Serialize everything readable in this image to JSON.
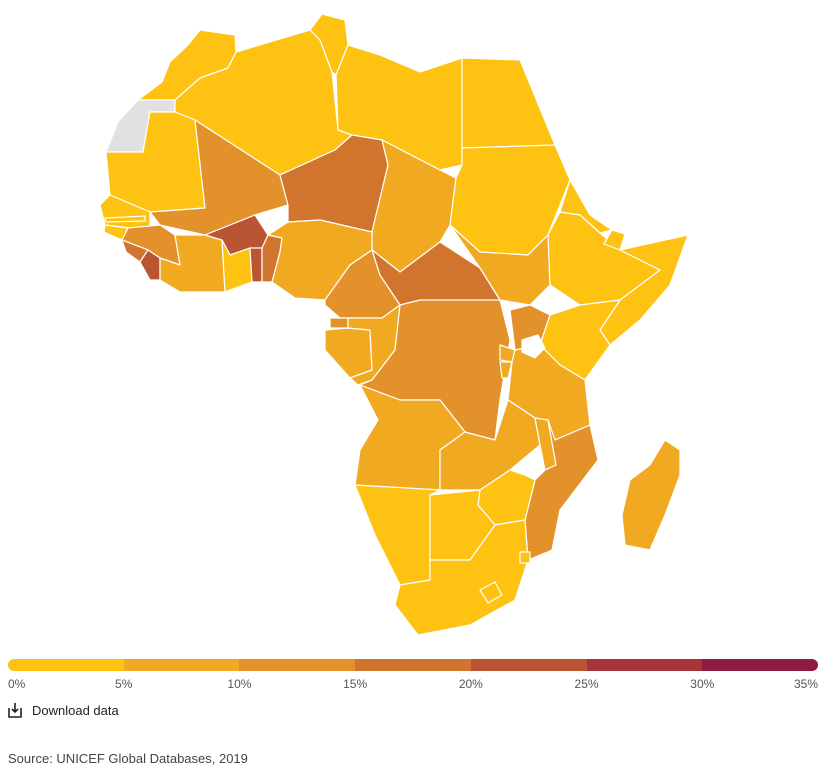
{
  "map": {
    "legend": {
      "colors": [
        "#FEC212",
        "#F0A920",
        "#E3912A",
        "#D0742E",
        "#BA5534",
        "#A53539",
        "#8F1A42"
      ],
      "labels": [
        "0%",
        "5%",
        "10%",
        "15%",
        "20%",
        "25%",
        "30%",
        "35%"
      ]
    },
    "no_data_color": "#E1E1E1",
    "regions": [
      {
        "name": "Morocco",
        "value": 1
      },
      {
        "name": "Western Sahara",
        "value": null
      },
      {
        "name": "Algeria",
        "value": 1
      },
      {
        "name": "Tunisia",
        "value": 1
      },
      {
        "name": "Libya",
        "value": 1
      },
      {
        "name": "Egypt",
        "value": 2
      },
      {
        "name": "Mauritania",
        "value": 2
      },
      {
        "name": "Mali",
        "value": 11
      },
      {
        "name": "Niger",
        "value": 16
      },
      {
        "name": "Chad",
        "value": 8
      },
      {
        "name": "Sudan",
        "value": 4
      },
      {
        "name": "Senegal",
        "value": 4
      },
      {
        "name": "Gambia",
        "value": 4
      },
      {
        "name": "Guinea-Bissau",
        "value": 4
      },
      {
        "name": "Guinea",
        "value": 14
      },
      {
        "name": "Sierra Leone",
        "value": 15
      },
      {
        "name": "Liberia",
        "value": 21
      },
      {
        "name": "Cote d'Ivoire",
        "value": 7
      },
      {
        "name": "Burkina Faso",
        "value": 20
      },
      {
        "name": "Ghana",
        "value": 4
      },
      {
        "name": "Togo",
        "value": 21
      },
      {
        "name": "Benin",
        "value": 16
      },
      {
        "name": "Nigeria",
        "value": 7
      },
      {
        "name": "Cameroon",
        "value": 10
      },
      {
        "name": "Central African Republic",
        "value": 16
      },
      {
        "name": "South Sudan",
        "value": 7
      },
      {
        "name": "Ethiopia",
        "value": 3
      },
      {
        "name": "Eritrea",
        "value": 3
      },
      {
        "name": "Djibouti",
        "value": 3
      },
      {
        "name": "Somalia",
        "value": 2
      },
      {
        "name": "Equatorial Guinea",
        "value": 13
      },
      {
        "name": "Gabon",
        "value": 7
      },
      {
        "name": "Congo",
        "value": 8
      },
      {
        "name": "DR Congo",
        "value": 12
      },
      {
        "name": "Uganda",
        "value": 11
      },
      {
        "name": "Kenya",
        "value": 2
      },
      {
        "name": "Rwanda",
        "value": 7
      },
      {
        "name": "Burundi",
        "value": 8
      },
      {
        "name": "Tanzania",
        "value": 7
      },
      {
        "name": "Angola",
        "value": 7
      },
      {
        "name": "Zambia",
        "value": 7
      },
      {
        "name": "Malawi",
        "value": 8
      },
      {
        "name": "Mozambique",
        "value": 13
      },
      {
        "name": "Zimbabwe",
        "value": 3
      },
      {
        "name": "Namibia",
        "value": 2
      },
      {
        "name": "Botswana",
        "value": 2
      },
      {
        "name": "South Africa",
        "value": 2
      },
      {
        "name": "Lesotho",
        "value": 2
      },
      {
        "name": "Eswatini",
        "value": 2
      },
      {
        "name": "Madagascar",
        "value": 7
      }
    ]
  },
  "download_label": "Download data",
  "source": "Source: UNICEF Global Databases, 2019"
}
